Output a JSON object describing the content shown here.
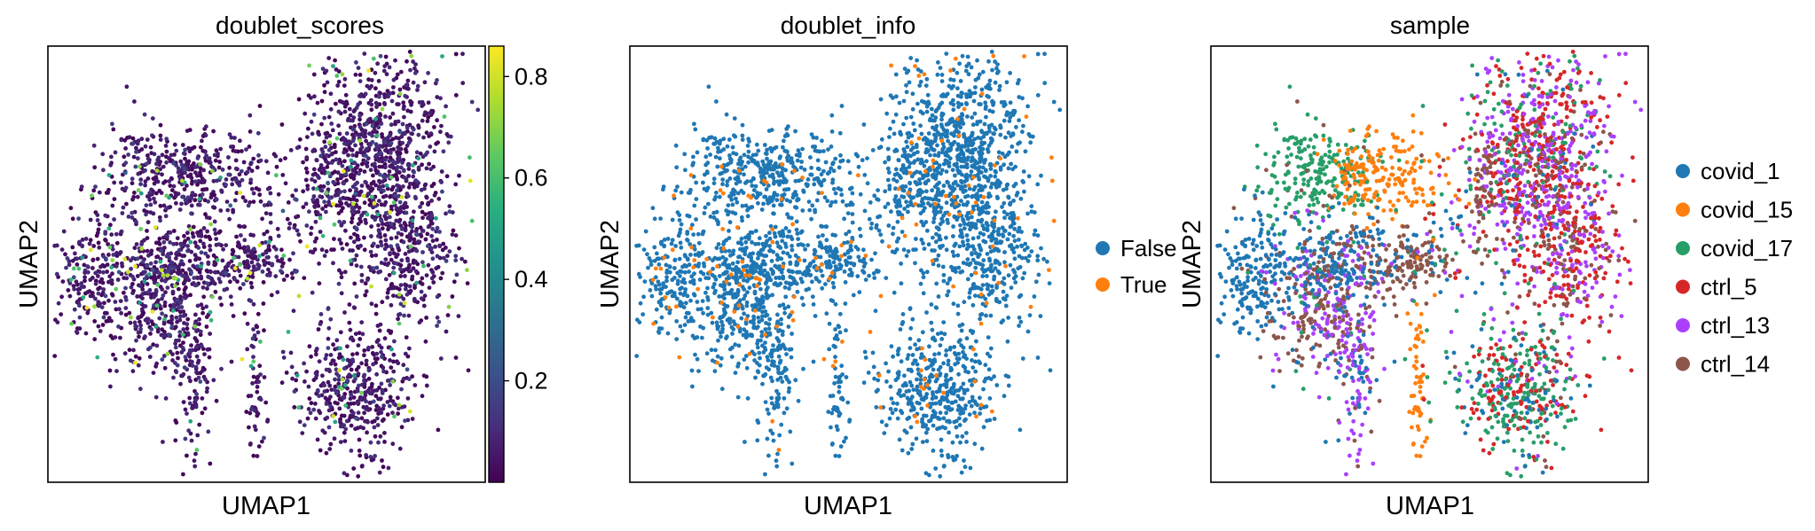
{
  "chart_data": [
    {
      "type": "scatter",
      "title": "doublet_scores",
      "xlabel": "UMAP1",
      "ylabel": "UMAP2",
      "color_by": "continuous",
      "colormap": "viridis",
      "colorbar": {
        "min": 0.0,
        "max": 0.86,
        "ticks": [
          "0.2",
          "0.4",
          "0.6",
          "0.8"
        ],
        "tick_values": [
          0.2,
          0.4,
          0.6,
          0.8
        ]
      },
      "axis_ticks": false,
      "grid": false
    },
    {
      "type": "scatter",
      "title": "doublet_info",
      "xlabel": "UMAP1",
      "ylabel": "UMAP2",
      "color_by": "categorical",
      "legend_position": "right",
      "categories": [
        {
          "label": "False",
          "color": "#1f77b4"
        },
        {
          "label": "True",
          "color": "#ff7f0e"
        }
      ],
      "axis_ticks": false,
      "grid": false
    },
    {
      "type": "scatter",
      "title": "sample",
      "xlabel": "UMAP1",
      "ylabel": "UMAP2",
      "color_by": "categorical",
      "legend_position": "right",
      "categories": [
        {
          "label": "covid_1",
          "color": "#1f77b4"
        },
        {
          "label": "covid_15",
          "color": "#ff7f0e"
        },
        {
          "label": "covid_17",
          "color": "#279e68"
        },
        {
          "label": "ctrl_5",
          "color": "#d62728"
        },
        {
          "label": "ctrl_13",
          "color": "#aa40fc"
        },
        {
          "label": "ctrl_14",
          "color": "#8c564b"
        }
      ],
      "axis_ticks": false,
      "grid": false
    }
  ]
}
